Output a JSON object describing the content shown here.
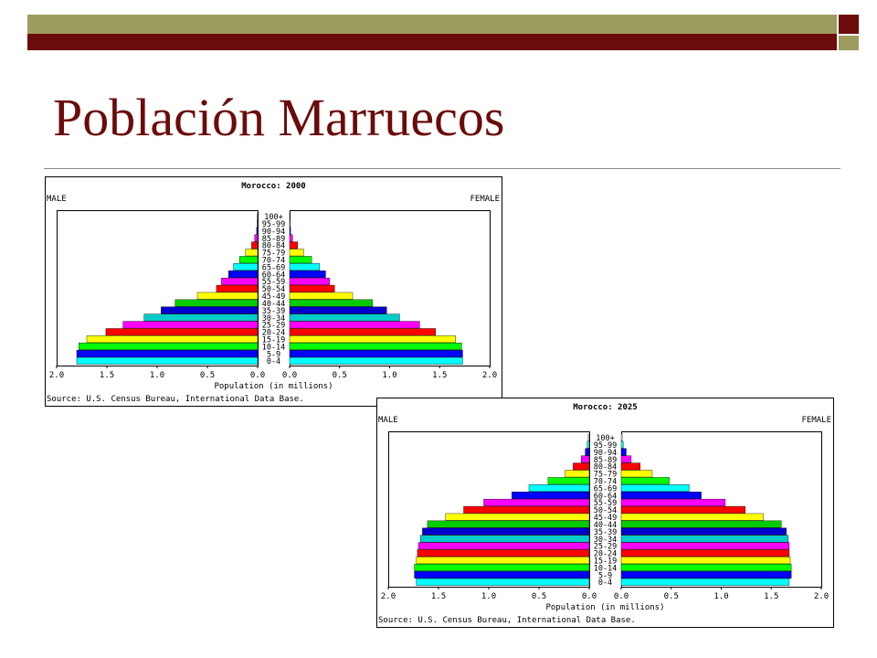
{
  "slide": {
    "title": "Población Marruecos"
  },
  "colors": {
    "accent_light": "#9c9c5e",
    "accent_dark": "#6b0b0b",
    "title": "#6b0b0b"
  },
  "chart_data": [
    {
      "type": "bar",
      "title": "Morocco: 2000",
      "left_label": "MALE",
      "right_label": "FEMALE",
      "xlabel": "Population (in millions)",
      "source": "Source: U.S. Census Bureau, International Data Base.",
      "xlim": [
        0,
        2.0
      ],
      "ticks": [
        "2.0",
        "1.5",
        "1.0",
        "0.5",
        "0.0",
        "0.0",
        "0.5",
        "1.0",
        "1.5",
        "2.0"
      ],
      "categories": [
        "0-4",
        "5-9",
        "10-14",
        "15-19",
        "20-24",
        "25-29",
        "30-34",
        "35-39",
        "40-44",
        "45-49",
        "50-54",
        "55-59",
        "60-64",
        "65-69",
        "70-74",
        "75-79",
        "80-84",
        "85-89",
        "90-94",
        "95-99",
        "100+"
      ],
      "series": [
        {
          "name": "MALE",
          "values": [
            1.8,
            1.8,
            1.78,
            1.7,
            1.51,
            1.34,
            1.13,
            0.96,
            0.82,
            0.6,
            0.41,
            0.36,
            0.29,
            0.24,
            0.18,
            0.12,
            0.06,
            0.03,
            0.01,
            0.005,
            0.002
          ]
        },
        {
          "name": "FEMALE",
          "values": [
            1.73,
            1.73,
            1.72,
            1.66,
            1.46,
            1.3,
            1.1,
            0.97,
            0.83,
            0.63,
            0.45,
            0.4,
            0.36,
            0.3,
            0.22,
            0.14,
            0.08,
            0.03,
            0.01,
            0.005,
            0.002
          ]
        }
      ]
    },
    {
      "type": "bar",
      "title": "Morocco: 2025",
      "left_label": "MALE",
      "right_label": "FEMALE",
      "xlabel": "Population (in millions)",
      "source": "Source: U.S. Census Bureau, International Data Base.",
      "xlim": [
        0,
        2.0
      ],
      "ticks": [
        "2.0",
        "1.5",
        "1.0",
        "0.5",
        "0.0",
        "0.0",
        "0.5",
        "1.0",
        "1.5",
        "2.0"
      ],
      "categories": [
        "0-4",
        "5-9",
        "10-14",
        "15-19",
        "20-24",
        "25-29",
        "30-34",
        "35-39",
        "40-44",
        "45-49",
        "50-54",
        "55-59",
        "60-64",
        "65-69",
        "70-74",
        "75-79",
        "80-84",
        "85-89",
        "90-94",
        "95-99",
        "100+"
      ],
      "series": [
        {
          "name": "MALE",
          "values": [
            1.72,
            1.74,
            1.74,
            1.72,
            1.71,
            1.7,
            1.68,
            1.66,
            1.61,
            1.43,
            1.25,
            1.05,
            0.77,
            0.6,
            0.41,
            0.24,
            0.16,
            0.08,
            0.04,
            0.02,
            0.01
          ]
        },
        {
          "name": "FEMALE",
          "values": [
            1.68,
            1.7,
            1.7,
            1.69,
            1.68,
            1.68,
            1.67,
            1.65,
            1.6,
            1.42,
            1.24,
            1.04,
            0.8,
            0.68,
            0.48,
            0.31,
            0.19,
            0.1,
            0.05,
            0.02,
            0.01
          ]
        }
      ]
    }
  ]
}
